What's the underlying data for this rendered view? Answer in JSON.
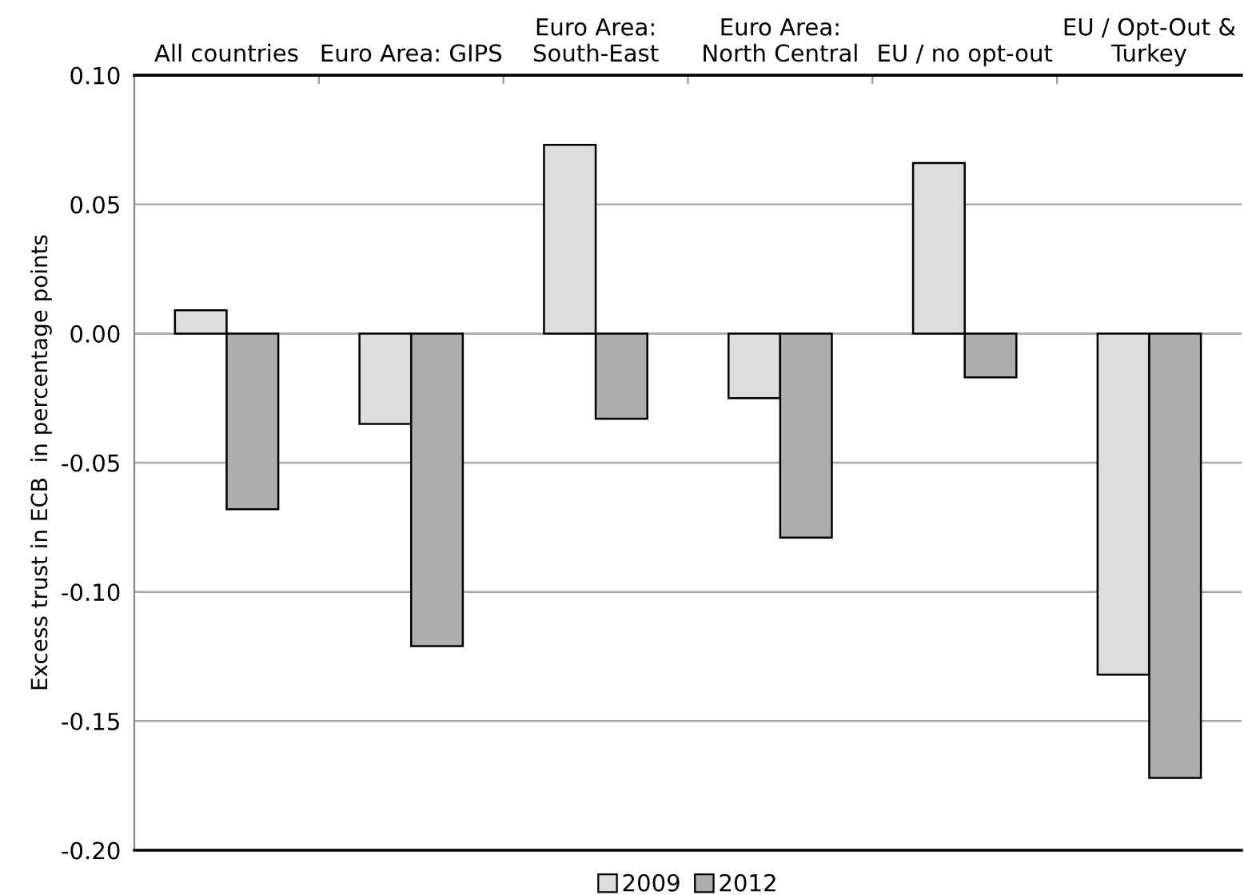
{
  "chart_data": {
    "type": "bar",
    "ylabel": "Excess trust in ECB  in percentage points",
    "categories": [
      "All countries",
      "Euro Area: GIPS",
      "Euro Area:\nSouth-East",
      "Euro Area:\nNorth Central",
      "EU / no opt-out",
      "EU / Opt-Out &\nTurkey"
    ],
    "series": [
      {
        "name": "2009",
        "color": "#dcdedd",
        "values": [
          0.009,
          -0.035,
          0.073,
          -0.025,
          0.066,
          -0.132
        ]
      },
      {
        "name": "2012",
        "color": "#adadad",
        "values": [
          -0.068,
          -0.121,
          -0.033,
          -0.079,
          -0.017,
          -0.172
        ]
      }
    ],
    "ylim": [
      -0.2,
      0.1
    ],
    "yticks": [
      {
        "value": -0.2,
        "label": "-0.20"
      },
      {
        "value": -0.15,
        "label": "-0.15"
      },
      {
        "value": -0.1,
        "label": "-0.10"
      },
      {
        "value": -0.05,
        "label": "-0.05"
      },
      {
        "value": 0,
        "label": "0.00"
      },
      {
        "value": 0.05,
        "label": "0.05"
      },
      {
        "value": 0.1,
        "label": "0.10"
      }
    ],
    "grid": "y",
    "legend": "bottom"
  }
}
